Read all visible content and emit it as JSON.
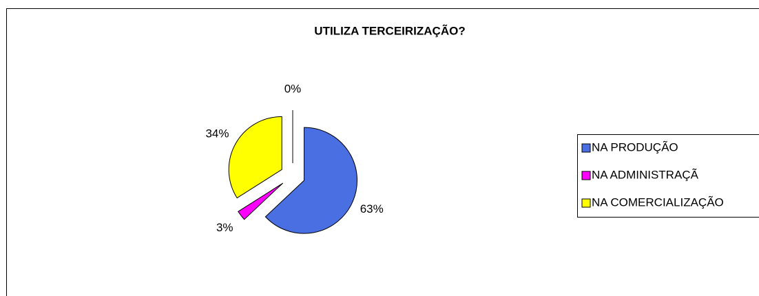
{
  "chart_data": {
    "type": "pie",
    "title": "UTILIZA TERCEIRIZAÇÃO?",
    "categories": [
      "NA PRODUÇÃO",
      "NA ADMINISTRAÇÃ",
      "NA COMERCIALIZAÇÃO",
      null
    ],
    "values": [
      63,
      3,
      34,
      0
    ],
    "value_labels": [
      "63%",
      "3%",
      "34%",
      "0%"
    ],
    "colors": [
      "#4a6fe3",
      "#ff00ff",
      "#ffff00",
      "#ffffff"
    ],
    "legend": "right"
  }
}
